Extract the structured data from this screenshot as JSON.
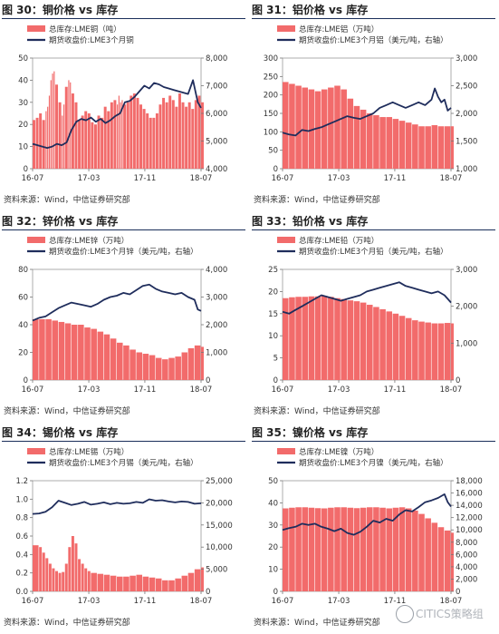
{
  "panels": [
    {
      "title": "图 30：铜价格 vs 库存",
      "source": "资料来源：Wind，中信证券研究部",
      "chart_data": {
        "type": "bar",
        "legend": [
          "总库存:LME铜（吨）",
          "期货收盘价:LME3个月铜"
        ],
        "x_ticks": [
          "16-07",
          "17-03",
          "17-11",
          "18-07"
        ],
        "left_axis": {
          "min": 0,
          "max": 50,
          "ticks": [
            "0",
            "10",
            "20",
            "30",
            "40",
            "50"
          ]
        },
        "right_axis": {
          "min": 4000,
          "max": 8000,
          "ticks": [
            "4,000",
            "5,000",
            "6,000",
            "7,000",
            "8,000"
          ]
        },
        "bar_series": {
          "name": "总库存:LME铜（吨）",
          "color": "#f26b6b",
          "x": [
            0,
            2,
            4,
            6,
            8,
            9,
            10,
            11,
            12,
            13,
            14,
            16,
            18,
            19,
            20,
            22,
            23,
            24,
            26,
            28,
            30,
            32,
            34,
            36,
            38,
            40,
            42,
            44,
            46,
            48,
            50,
            52,
            53,
            54,
            55,
            56,
            58,
            60,
            62,
            64,
            66,
            68,
            70,
            72,
            74,
            76,
            78,
            80,
            82,
            84,
            86,
            88,
            90,
            92,
            94,
            96,
            98,
            100,
            102,
            104
          ],
          "values": [
            22,
            23,
            25,
            22,
            26,
            28,
            33,
            40,
            43,
            44,
            38,
            30,
            24,
            29,
            37,
            40,
            39,
            34,
            30,
            22,
            24,
            26,
            25,
            21,
            20,
            24,
            23,
            28,
            26,
            30,
            31,
            29,
            33,
            30,
            31,
            29,
            30,
            33,
            34,
            32,
            29,
            27,
            25,
            23,
            23,
            25,
            29,
            32,
            30,
            33,
            31,
            28,
            34,
            30,
            28,
            30,
            27,
            31,
            33,
            30
          ]
        },
        "line_series": {
          "name": "期货收盘价:LME3个月铜",
          "color": "#1f2d5c",
          "x": [
            0,
            3,
            6,
            9,
            12,
            15,
            18,
            21,
            24,
            27,
            30,
            33,
            36,
            39,
            42,
            45,
            48,
            51,
            54,
            57,
            60,
            63,
            66,
            69,
            72,
            75,
            78,
            81,
            84,
            87,
            90,
            93,
            96,
            99,
            102,
            104
          ],
          "values": [
            4900,
            4850,
            4800,
            4750,
            4800,
            4900,
            4850,
            4950,
            5400,
            5700,
            5800,
            5750,
            5850,
            5700,
            5800,
            5650,
            5750,
            5900,
            6000,
            6400,
            6450,
            6600,
            6800,
            7000,
            6900,
            7100,
            7050,
            6950,
            6900,
            6850,
            6800,
            6750,
            6700,
            7200,
            6400,
            6200
          ]
        }
      }
    },
    {
      "title": "图 31：铝价格 vs 库存",
      "source": "资料来源：Wind，中信证券研究部",
      "chart_data": {
        "type": "bar",
        "legend": [
          "总库存:LME铝（万吨）",
          "期货收盘价:LME3个月铝（美元/吨，右轴）"
        ],
        "x_ticks": [
          "16-07",
          "17-03",
          "17-11",
          "18-07"
        ],
        "left_axis": {
          "min": 0,
          "max": 300,
          "ticks": [
            "0",
            "50",
            "100",
            "150",
            "200",
            "250",
            "300"
          ]
        },
        "right_axis": {
          "min": 1000,
          "max": 3000,
          "ticks": [
            "1,000",
            "1,500",
            "2,000",
            "2,500",
            "3,000"
          ]
        },
        "bar_series": {
          "name": "总库存:LME铝（万吨）",
          "color": "#f26b6b",
          "x": [
            0,
            4,
            8,
            12,
            16,
            20,
            24,
            28,
            32,
            36,
            40,
            44,
            48,
            52,
            56,
            60,
            64,
            68,
            72,
            76,
            80,
            84,
            88,
            92,
            96,
            100,
            104
          ],
          "values": [
            235,
            230,
            225,
            220,
            215,
            210,
            215,
            220,
            225,
            215,
            190,
            170,
            160,
            150,
            145,
            140,
            140,
            135,
            130,
            125,
            120,
            115,
            115,
            118,
            115,
            115,
            115
          ]
        },
        "line_series": {
          "name": "期货收盘价:LME3个月铝（美元/吨，右轴）",
          "color": "#1f2d5c",
          "x": [
            0,
            4,
            8,
            12,
            16,
            20,
            24,
            28,
            32,
            36,
            40,
            44,
            48,
            52,
            56,
            60,
            64,
            68,
            72,
            76,
            80,
            84,
            88,
            92,
            94,
            96,
            98,
            100,
            102,
            104
          ],
          "values": [
            1650,
            1620,
            1600,
            1700,
            1680,
            1720,
            1750,
            1800,
            1850,
            1900,
            1950,
            1920,
            1900,
            1950,
            2000,
            2100,
            2150,
            2200,
            2150,
            2100,
            2150,
            2200,
            2150,
            2250,
            2450,
            2300,
            2200,
            2250,
            2050,
            2100
          ]
        }
      }
    },
    {
      "title": "图 32：锌价格 vs 库存",
      "source": "资料来源：Wind，中信证券研究部",
      "chart_data": {
        "type": "bar",
        "legend": [
          "总库存:LME锌（万吨）",
          "期货收盘价:LME3个月锌（美元/吨，右轴）"
        ],
        "x_ticks": [
          "16-07",
          "17-03",
          "17-11",
          "18-07"
        ],
        "left_axis": {
          "min": 0,
          "max": 80,
          "ticks": [
            "0",
            "20",
            "40",
            "60",
            "80"
          ]
        },
        "right_axis": {
          "min": 0,
          "max": 4000,
          "ticks": [
            "0",
            "1,000",
            "2,000",
            "3,000",
            "4,000"
          ]
        },
        "bar_series": {
          "name": "总库存:LME锌（万吨）",
          "color": "#f26b6b",
          "x": [
            0,
            4,
            8,
            12,
            16,
            20,
            24,
            28,
            32,
            36,
            40,
            44,
            48,
            52,
            56,
            60,
            64,
            68,
            72,
            76,
            80,
            84,
            88,
            92,
            96,
            100,
            104
          ],
          "values": [
            44,
            44,
            44,
            43,
            42,
            41,
            40,
            40,
            38,
            37,
            35,
            33,
            30,
            27,
            25,
            22,
            20,
            19,
            18,
            16,
            15,
            16,
            17,
            20,
            23,
            25,
            24
          ]
        },
        "line_series": {
          "name": "期货收盘价:LME3个月锌（美元/吨，右轴）",
          "color": "#1f2d5c",
          "x": [
            0,
            4,
            8,
            12,
            16,
            20,
            24,
            28,
            32,
            36,
            40,
            44,
            48,
            52,
            56,
            60,
            64,
            68,
            72,
            76,
            80,
            84,
            88,
            92,
            96,
            100,
            102,
            104
          ],
          "values": [
            2150,
            2250,
            2300,
            2450,
            2600,
            2700,
            2800,
            2750,
            2700,
            2650,
            2750,
            2900,
            3000,
            3050,
            3150,
            3100,
            3250,
            3400,
            3450,
            3300,
            3200,
            3150,
            3100,
            3150,
            3000,
            2900,
            2550,
            2500
          ]
        }
      }
    },
    {
      "title": "图 33：铅价格 vs 库存",
      "source": "资料来源：Wind，中信证券研究部",
      "chart_data": {
        "type": "bar",
        "legend": [
          "总库存:LME铅（万吨）",
          "期货收盘价:LME3个月铅（美元/吨，右轴）"
        ],
        "x_ticks": [
          "16-07",
          "17-03",
          "17-11",
          "18-07"
        ],
        "left_axis": {
          "min": 0,
          "max": 25,
          "ticks": [
            "0",
            "5",
            "10",
            "15",
            "20",
            "25"
          ]
        },
        "right_axis": {
          "min": 0,
          "max": 3000,
          "ticks": [
            "0",
            "1,000",
            "2,000",
            "3,000"
          ]
        },
        "bar_series": {
          "name": "总库存:LME铅（万吨）",
          "color": "#f26b6b",
          "x": [
            0,
            4,
            8,
            12,
            16,
            20,
            24,
            28,
            32,
            36,
            40,
            44,
            48,
            52,
            56,
            60,
            64,
            68,
            72,
            76,
            80,
            84,
            88,
            92,
            96,
            100,
            104
          ],
          "values": [
            18.5,
            18.7,
            18.8,
            18.8,
            18.9,
            18.9,
            19,
            18.8,
            18.5,
            18.3,
            18,
            17.8,
            17.5,
            17,
            16.5,
            16,
            15.5,
            15,
            14.5,
            14,
            13.5,
            13.2,
            13,
            12.8,
            12.8,
            12.9,
            12.8
          ]
        },
        "line_series": {
          "name": "期货收盘价:LME3个月铅（美元/吨，右轴）",
          "color": "#1f2d5c",
          "x": [
            0,
            4,
            8,
            12,
            16,
            20,
            24,
            28,
            32,
            36,
            40,
            44,
            48,
            52,
            56,
            60,
            64,
            68,
            72,
            76,
            80,
            84,
            88,
            92,
            96,
            100,
            102,
            104
          ],
          "values": [
            1850,
            1800,
            1900,
            2000,
            2100,
            2200,
            2300,
            2250,
            2200,
            2150,
            2200,
            2250,
            2300,
            2400,
            2450,
            2500,
            2550,
            2600,
            2650,
            2550,
            2500,
            2450,
            2400,
            2350,
            2400,
            2300,
            2200,
            2100
          ]
        }
      }
    },
    {
      "title": "图 34：锡价格 vs 库存",
      "source": "资料来源：Wind，中信证券研究部",
      "chart_data": {
        "type": "bar",
        "legend": [
          "总库存:LME锡（万吨）",
          "期货收盘价:LME3个月锡（美元/吨，右轴）"
        ],
        "x_ticks": [
          "16-07",
          "17-03",
          "17-11",
          "18-07"
        ],
        "left_axis": {
          "min": 0,
          "max": 1.2,
          "ticks": [
            "0.0",
            "0.2",
            "0.4",
            "0.6",
            "0.8",
            "1.0",
            "1.2"
          ]
        },
        "right_axis": {
          "min": 0,
          "max": 25000,
          "ticks": [
            "0",
            "5,000",
            "10,000",
            "15,000",
            "20,000",
            "25,000"
          ]
        },
        "bar_series": {
          "name": "总库存:LME锡（万吨）",
          "color": "#f26b6b",
          "x": [
            0,
            4,
            6,
            8,
            10,
            12,
            14,
            16,
            18,
            20,
            22,
            24,
            26,
            28,
            30,
            32,
            34,
            36,
            40,
            44,
            48,
            52,
            56,
            60,
            64,
            68,
            72,
            76,
            80,
            84,
            88,
            92,
            96,
            100,
            104
          ],
          "values": [
            0.5,
            0.48,
            0.42,
            0.36,
            0.3,
            0.25,
            0.22,
            0.2,
            0.21,
            0.3,
            0.48,
            0.6,
            0.52,
            0.35,
            0.3,
            0.25,
            0.22,
            0.2,
            0.19,
            0.18,
            0.17,
            0.16,
            0.16,
            0.17,
            0.18,
            0.16,
            0.15,
            0.14,
            0.12,
            0.12,
            0.14,
            0.17,
            0.2,
            0.24,
            0.26
          ]
        },
        "line_series": {
          "name": "期货收盘价:LME3个月锡（美元/吨，右轴）",
          "color": "#1f2d5c",
          "x": [
            0,
            4,
            8,
            12,
            16,
            20,
            24,
            28,
            32,
            36,
            40,
            44,
            48,
            52,
            56,
            60,
            64,
            68,
            72,
            76,
            80,
            84,
            88,
            92,
            96,
            100,
            104
          ],
          "values": [
            17500,
            17600,
            18000,
            19000,
            20500,
            20000,
            19500,
            19800,
            20200,
            19600,
            19800,
            20100,
            19700,
            20000,
            19800,
            19900,
            20200,
            20000,
            20800,
            20500,
            20600,
            20300,
            20100,
            20300,
            20200,
            19800,
            19900
          ]
        }
      }
    },
    {
      "title": "图 35：镍价格 vs 库存",
      "source": "资料来源：Wind，中信证券研究部",
      "chart_data": {
        "type": "bar",
        "legend": [
          "总库存:LME镍（万吨）",
          "期货收盘价:LME3个月镍（美元/吨，右轴）"
        ],
        "x_ticks": [
          "16-07",
          "17-03",
          "17-11",
          "18-07"
        ],
        "left_axis": {
          "min": 0,
          "max": 50,
          "ticks": [
            "0",
            "10",
            "20",
            "30",
            "40",
            "50"
          ]
        },
        "right_axis": {
          "min": 0,
          "max": 18000,
          "ticks": [
            "0",
            "2,000",
            "4,000",
            "6,000",
            "8,000",
            "10,000",
            "12,000",
            "14,000",
            "16,000",
            "18,000"
          ]
        },
        "bar_series": {
          "name": "总库存:LME镍（万吨）",
          "color": "#f26b6b",
          "x": [
            0,
            4,
            8,
            12,
            16,
            20,
            24,
            28,
            32,
            36,
            40,
            44,
            48,
            52,
            56,
            60,
            64,
            68,
            72,
            76,
            80,
            84,
            88,
            92,
            96,
            100,
            104
          ],
          "values": [
            37.5,
            37.8,
            38,
            38,
            37.8,
            37.6,
            37.5,
            37.8,
            38,
            38,
            37.8,
            37.6,
            37.8,
            38,
            38,
            37.8,
            37.5,
            37.8,
            38,
            37.5,
            36.5,
            35,
            33,
            31,
            29,
            27.5,
            26.5
          ]
        },
        "line_series": {
          "name": "期货收盘价:LME3个月镍（美元/吨，右轴）",
          "color": "#1f2d5c",
          "x": [
            0,
            4,
            8,
            12,
            16,
            20,
            24,
            28,
            32,
            36,
            40,
            44,
            48,
            52,
            56,
            60,
            64,
            68,
            72,
            76,
            80,
            84,
            88,
            92,
            96,
            100,
            102,
            104
          ],
          "values": [
            10000,
            10300,
            10500,
            11000,
            10800,
            11000,
            10500,
            10200,
            9800,
            10200,
            9500,
            9200,
            9700,
            10500,
            11500,
            11200,
            11800,
            11500,
            12500,
            13200,
            13000,
            13700,
            14500,
            14800,
            15200,
            15800,
            14500,
            13800
          ]
        }
      }
    }
  ],
  "watermark": {
    "text": "CITICS策略组"
  }
}
